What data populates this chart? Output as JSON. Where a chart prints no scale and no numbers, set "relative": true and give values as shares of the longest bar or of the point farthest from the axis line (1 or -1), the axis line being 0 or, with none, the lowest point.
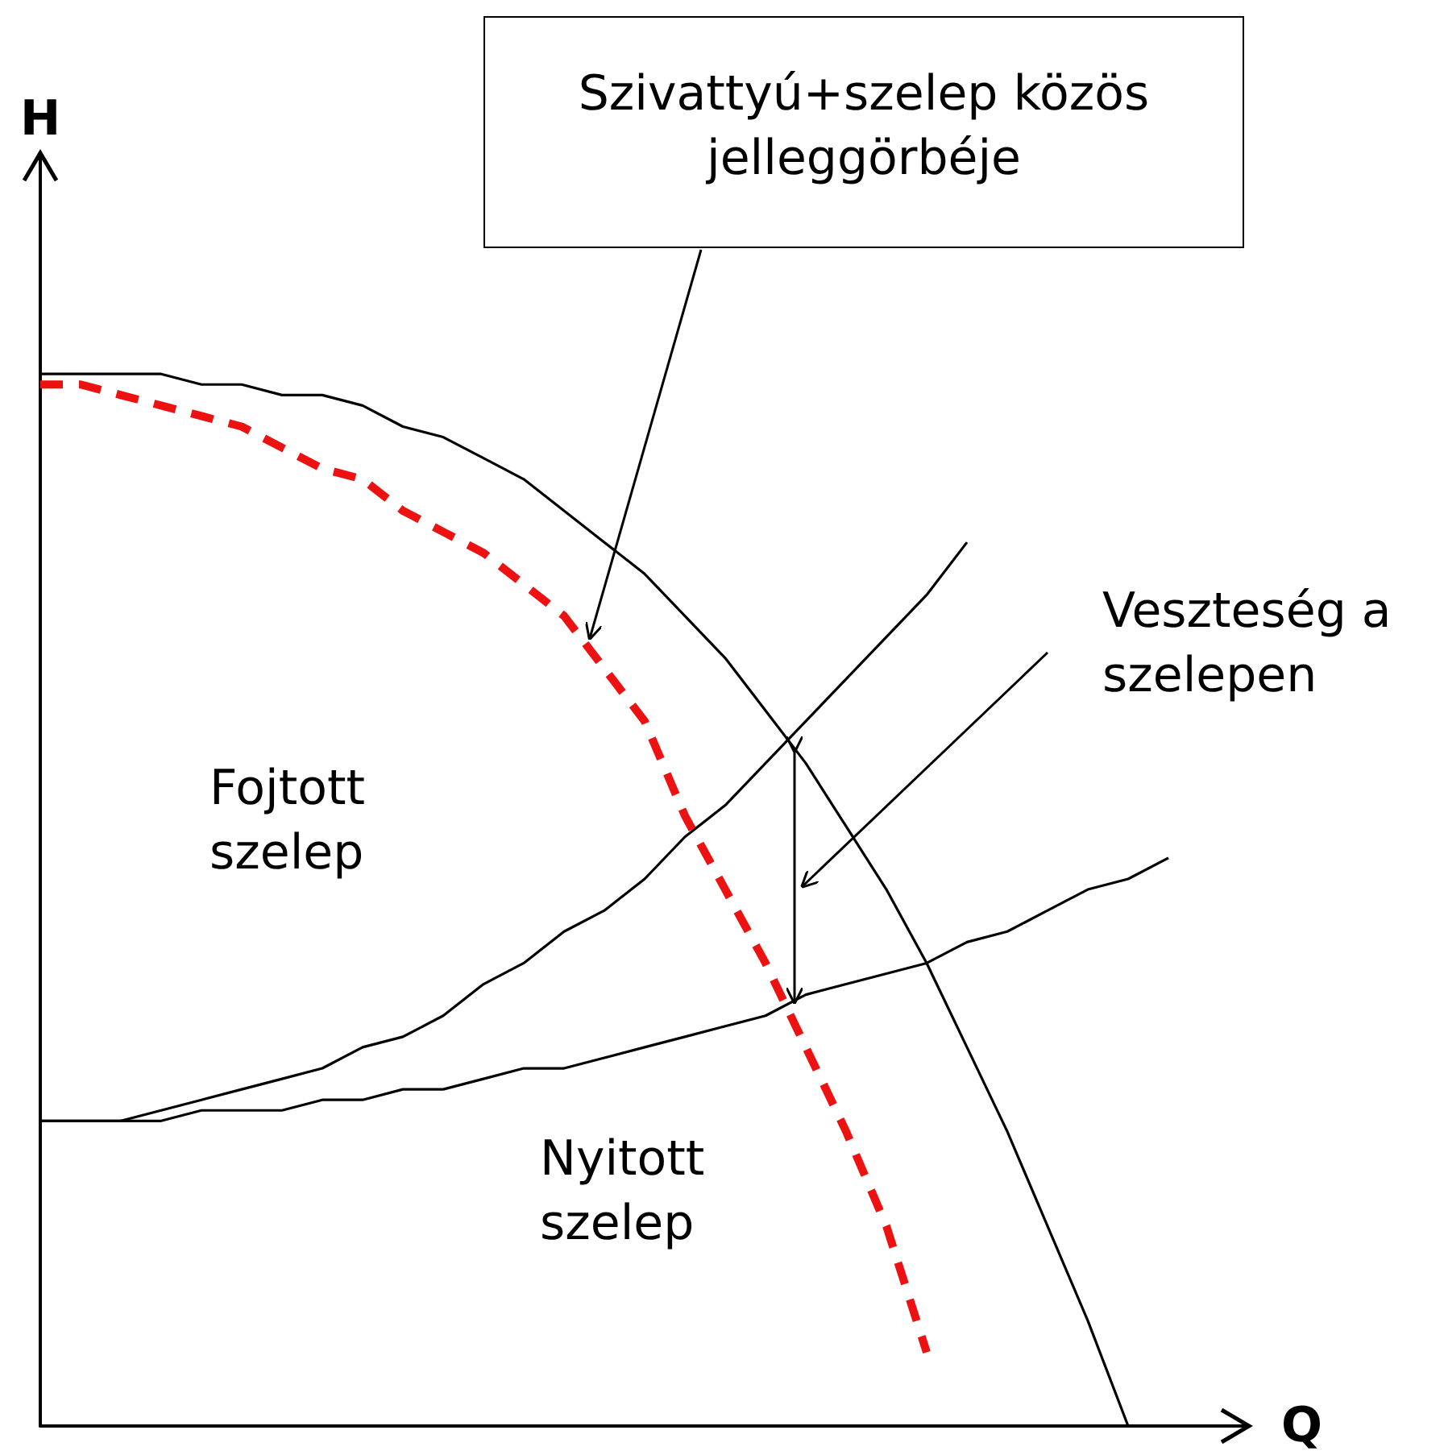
{
  "chart_data": {
    "type": "line",
    "relative": true,
    "xlabel": "Q",
    "ylabel": "H",
    "marker": "none",
    "grid": false,
    "categories": [
      null,
      null,
      null,
      null,
      null,
      null,
      null,
      null,
      null,
      null,
      null,
      null,
      null,
      null,
      null,
      null,
      null,
      null,
      null,
      null,
      null,
      null,
      null,
      null,
      null,
      null,
      null,
      null,
      null,
      null,
      null
    ],
    "series": [
      {
        "color": "#000000",
        "line_style": "solid",
        "values": [
          1,
          1,
          1,
          1,
          0.99,
          0.99,
          0.98,
          0.98,
          0.97,
          0.95,
          0.94,
          0.92,
          0.9,
          0.87,
          0.84,
          0.81,
          0.77,
          0.73,
          0.68,
          0.63,
          0.57,
          0.51,
          0.44,
          0.36,
          0.28,
          0.19,
          0.1,
          0,
          null,
          null,
          null
        ]
      },
      {
        "color": "#000000",
        "line_style": "solid",
        "values": [
          0.29,
          0.29,
          0.29,
          0.3,
          0.31,
          0.32,
          0.33,
          0.34,
          0.36,
          0.37,
          0.39,
          0.42,
          0.44,
          0.47,
          0.49,
          0.52,
          0.56,
          0.59,
          0.63,
          0.67,
          0.71,
          0.75,
          0.79,
          0.84,
          null,
          null,
          null,
          null,
          null,
          null,
          null
        ]
      },
      {
        "color": "#000000",
        "line_style": "solid",
        "values": [
          0.29,
          0.29,
          0.29,
          0.29,
          0.3,
          0.3,
          0.3,
          0.31,
          0.31,
          0.32,
          0.32,
          0.33,
          0.34,
          0.34,
          0.35,
          0.36,
          0.37,
          0.38,
          0.39,
          0.41,
          0.42,
          0.43,
          0.44,
          0.46,
          0.47,
          0.49,
          0.51,
          0.52,
          0.54,
          null,
          null
        ]
      },
      {
        "color": "#ee1111",
        "line_style": "dashed",
        "values": [
          0.99,
          0.99,
          0.98,
          0.97,
          0.96,
          0.95,
          0.93,
          0.91,
          0.9,
          0.87,
          0.85,
          0.83,
          0.8,
          0.77,
          0.72,
          0.67,
          0.58,
          0.51,
          0.44,
          0.36,
          0.28,
          0.19,
          0.07,
          null,
          null,
          null,
          null,
          null,
          null,
          null,
          null
        ]
      }
    ],
    "annotations": [
      "Szivattyú+szelep közös jelleggörbéje",
      "Veszteség a szelepen",
      "Fojtott szelep",
      "Nyitott szelep"
    ]
  }
}
